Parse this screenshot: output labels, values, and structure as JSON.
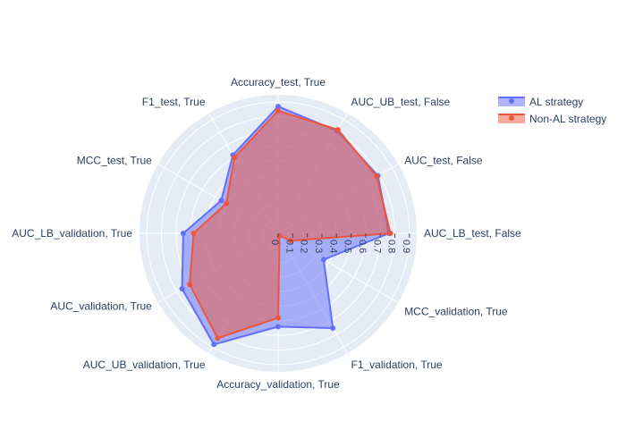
{
  "chart_data": {
    "type": "radar",
    "categories": [
      "AUC_LB_test,  False",
      "AUC_test,  False",
      "AUC_UB_test,  False",
      "Accuracy_test,  True",
      "F1_test,  True",
      "MCC_test,  True",
      "AUC_LB_validation,  True",
      "AUC_validation,  True",
      "AUC_UB_validation,  True",
      "Accuracy_validation,  True",
      "F1_validation,  True",
      "MCC_validation,  True"
    ],
    "series": [
      {
        "name": "AL strategy",
        "color": "#636efa",
        "values": [
          0.76,
          0.79,
          0.81,
          0.87,
          0.62,
          0.45,
          0.65,
          0.76,
          0.88,
          0.64,
          0.75,
          0.36
        ]
      },
      {
        "name": "Non-AL strategy",
        "color": "#ef553b",
        "values": [
          0.77,
          0.78,
          0.82,
          0.84,
          0.6,
          0.41,
          0.58,
          0.7,
          0.83,
          0.58,
          0.02,
          0.1
        ]
      }
    ],
    "radial_ticks": [
      "0",
      "0.1",
      "0.2",
      "0.3",
      "0.4",
      "0.5",
      "0.6",
      "0.7",
      "0.8",
      "0.9"
    ],
    "radial_range": [
      0,
      0.95
    ],
    "grid": true,
    "legend_position": "top-right"
  }
}
